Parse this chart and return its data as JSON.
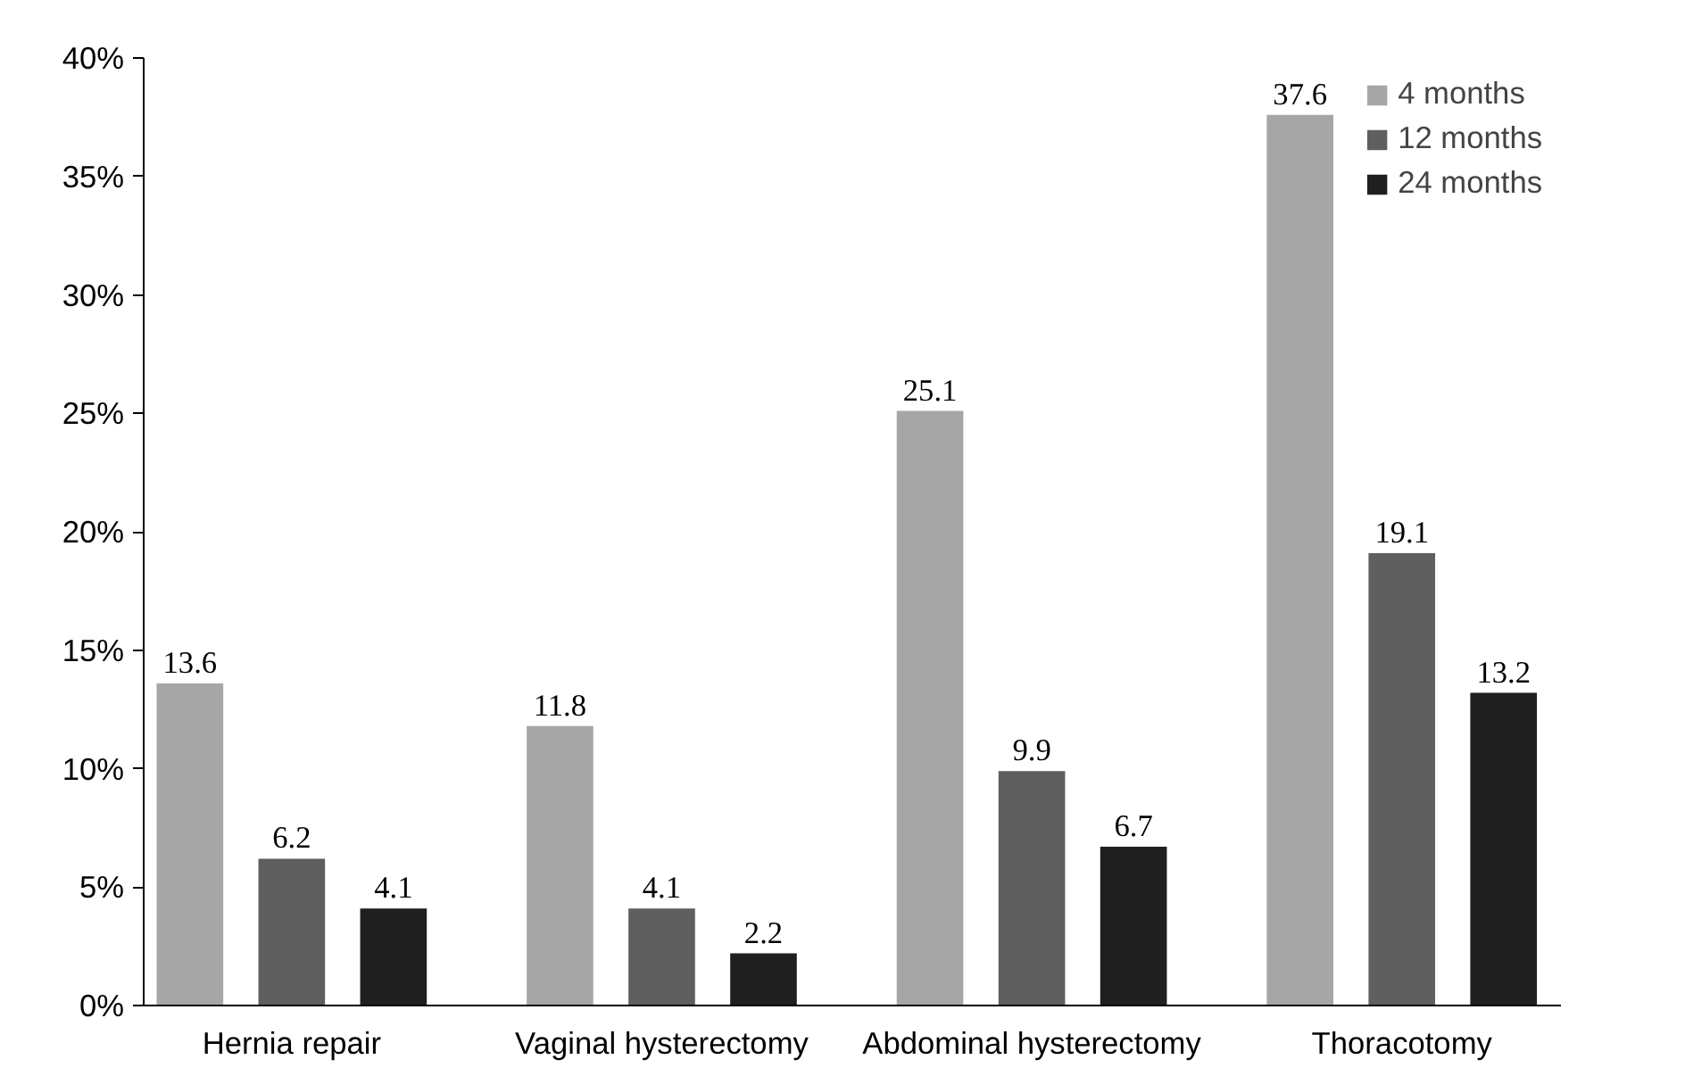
{
  "chart_data": {
    "type": "bar",
    "categories": [
      "Hernia repair",
      "Vaginal hysterectomy",
      "Abdominal hysterectomy",
      "Thoracotomy"
    ],
    "series": [
      {
        "name": "4 months",
        "color": "#a6a6a6",
        "values": [
          13.6,
          11.8,
          25.1,
          37.6
        ]
      },
      {
        "name": "12 months",
        "color": "#5f5f5f",
        "values": [
          6.2,
          4.1,
          9.9,
          19.1
        ]
      },
      {
        "name": "24 months",
        "color": "#1f1f1f",
        "values": [
          4.1,
          2.2,
          6.7,
          13.2
        ]
      }
    ],
    "ylim": [
      0,
      40
    ],
    "yticks": [
      {
        "value": 0,
        "label": "0%"
      },
      {
        "value": 5,
        "label": "5%"
      },
      {
        "value": 10,
        "label": "10%"
      },
      {
        "value": 15,
        "label": "15%"
      },
      {
        "value": 20,
        "label": "20%"
      },
      {
        "value": 25,
        "label": "25%"
      },
      {
        "value": 30,
        "label": "30%"
      },
      {
        "value": 35,
        "label": "35%"
      },
      {
        "value": 40,
        "label": "40%"
      }
    ],
    "data_labels": true,
    "grid": false,
    "legend": "top right"
  }
}
